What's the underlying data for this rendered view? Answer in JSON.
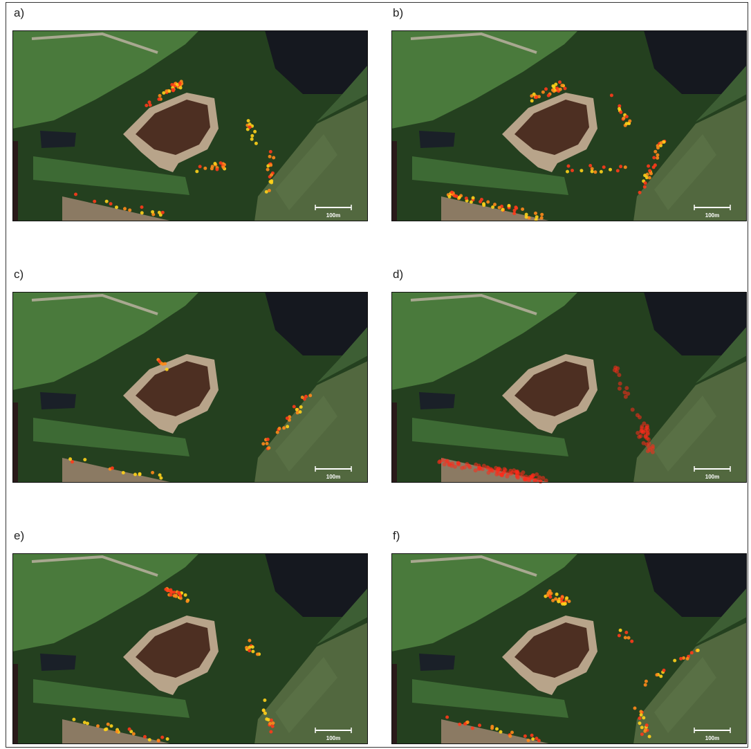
{
  "panels": [
    {
      "label": "a)",
      "scale_label": "100m"
    },
    {
      "label": "b)",
      "scale_label": "100m"
    },
    {
      "label": "c)",
      "scale_label": "100m"
    },
    {
      "label": "d)",
      "scale_label": "100m"
    },
    {
      "label": "e)",
      "scale_label": "100m"
    },
    {
      "label": "f)",
      "scale_label": "100m"
    }
  ]
}
